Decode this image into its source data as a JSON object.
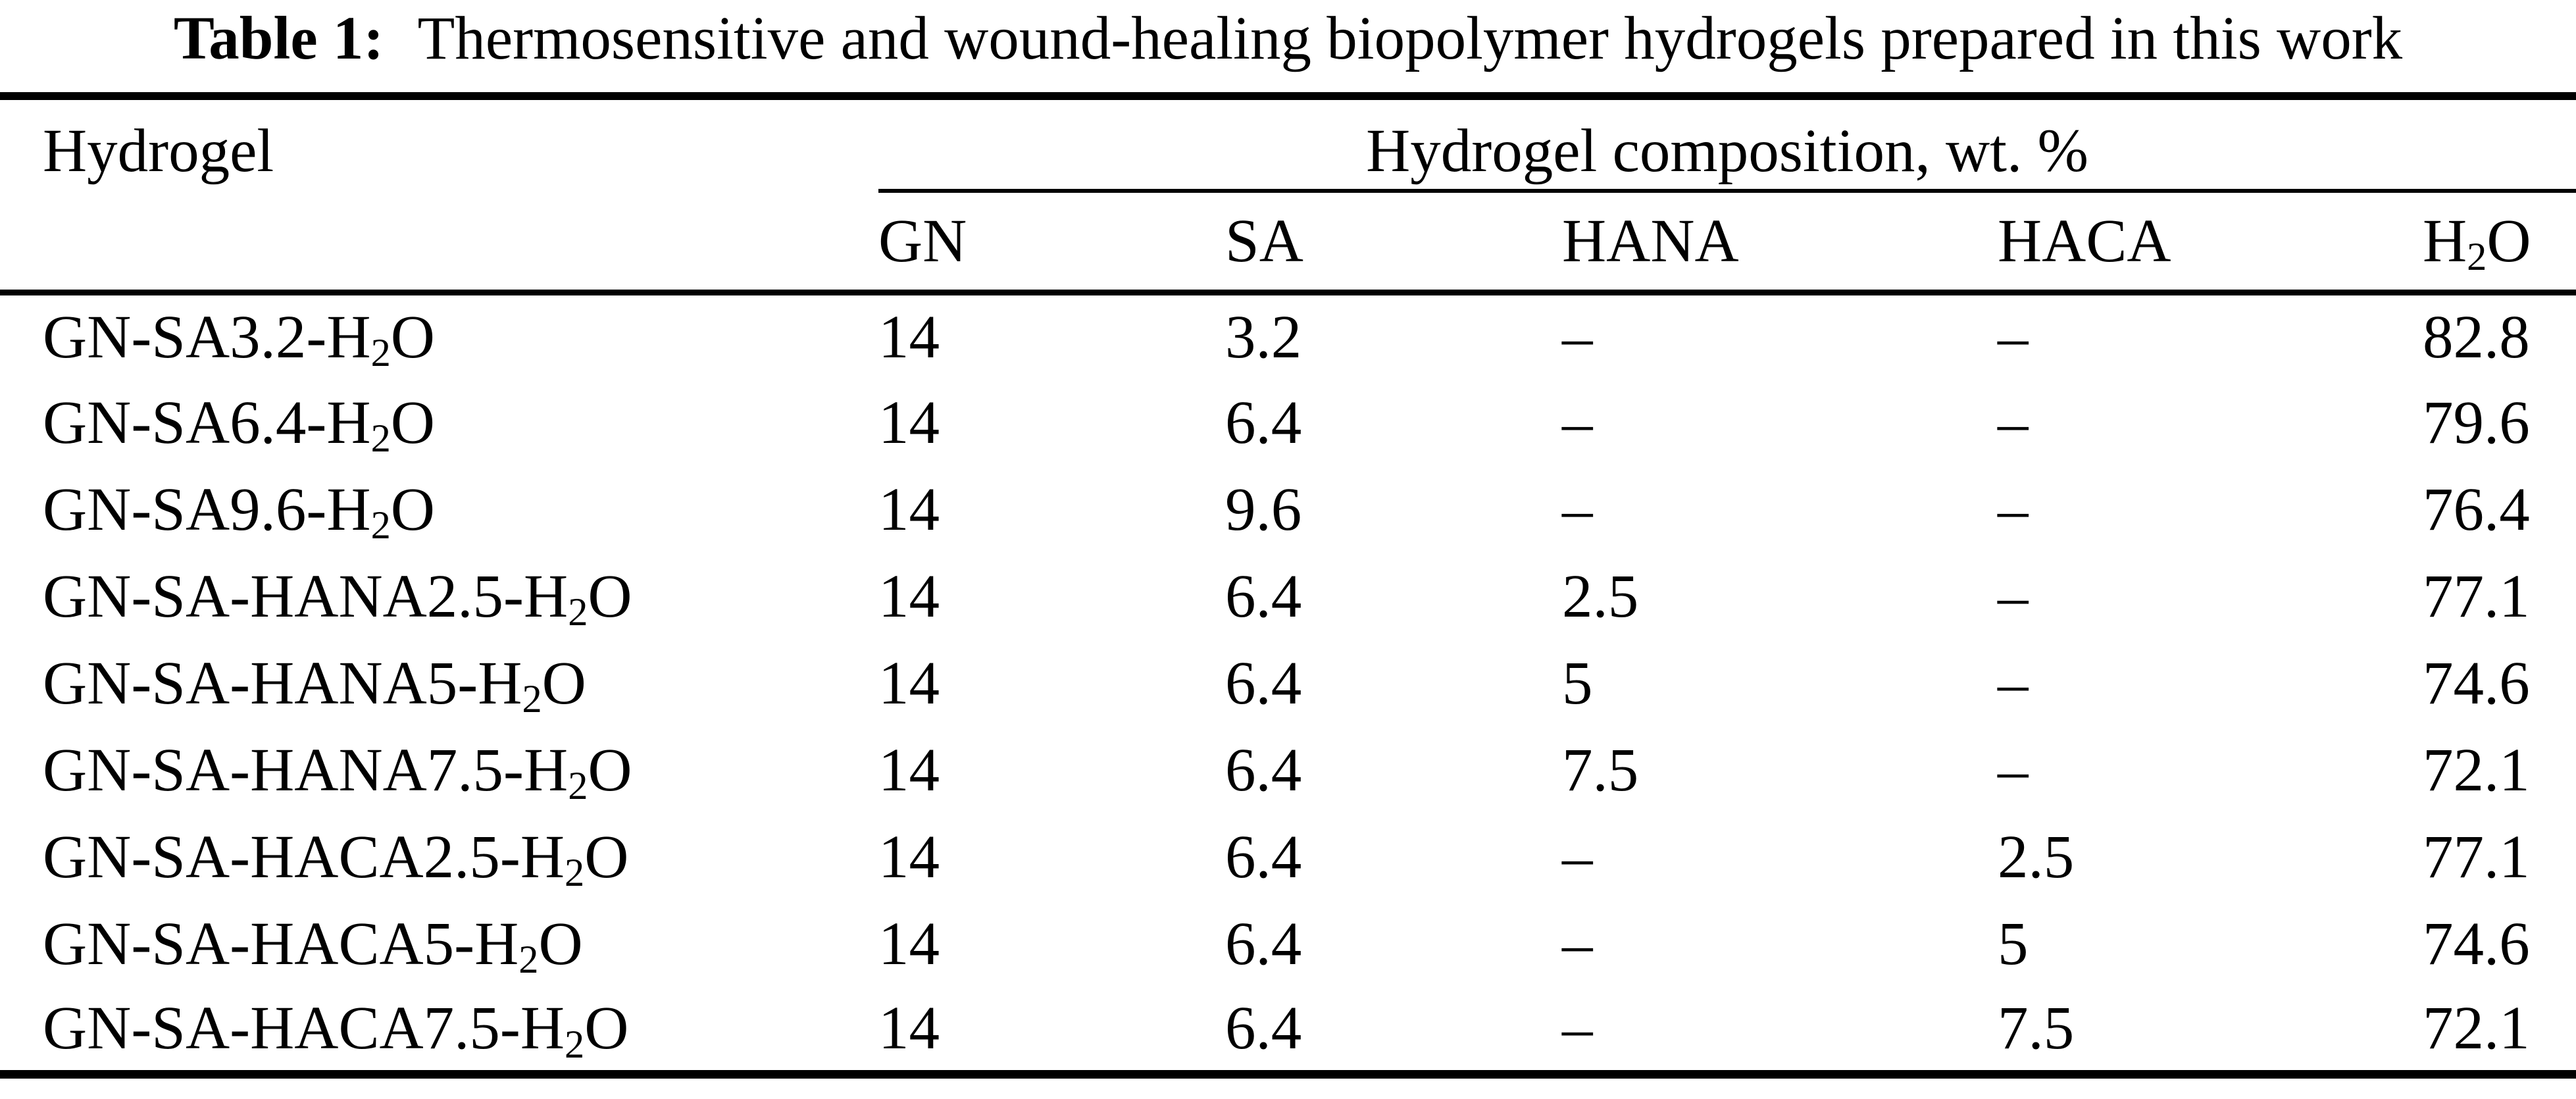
{
  "title": {
    "label": "Table 1:",
    "text": "Thermosensitive and wound-healing biopolymer hydrogels prepared in this work"
  },
  "colors": {
    "text": "#000000",
    "background": "#ffffff",
    "rules": "#000000"
  },
  "table": {
    "row_header": "Hydrogel",
    "group_header": "Hydrogel composition, wt. %",
    "columns": [
      "GN",
      "SA",
      "HANA",
      "HACA",
      "H~2~O"
    ],
    "rows": [
      {
        "name": "GN-SA3.2-H~2~O",
        "gn": "14",
        "sa": "3.2",
        "hana": "–",
        "haca": "–",
        "h2o": "82.8"
      },
      {
        "name": "GN-SA6.4-H~2~O",
        "gn": "14",
        "sa": "6.4",
        "hana": "–",
        "haca": "–",
        "h2o": "79.6"
      },
      {
        "name": "GN-SA9.6-H~2~O",
        "gn": "14",
        "sa": "9.6",
        "hana": "–",
        "haca": "–",
        "h2o": "76.4"
      },
      {
        "name": "GN-SA-HANA2.5-H~2~O",
        "gn": "14",
        "sa": "6.4",
        "hana": "2.5",
        "haca": "–",
        "h2o": "77.1"
      },
      {
        "name": "GN-SA-HANA5-H~2~O",
        "gn": "14",
        "sa": "6.4",
        "hana": "5",
        "haca": "–",
        "h2o": "74.6"
      },
      {
        "name": "GN-SA-HANA7.5-H~2~O",
        "gn": "14",
        "sa": "6.4",
        "hana": "7.5",
        "haca": "–",
        "h2o": "72.1"
      },
      {
        "name": "GN-SA-HACA2.5-H~2~O",
        "gn": "14",
        "sa": "6.4",
        "hana": "–",
        "haca": "2.5",
        "h2o": "77.1"
      },
      {
        "name": "GN-SA-HACA5-H~2~O",
        "gn": "14",
        "sa": "6.4",
        "hana": "–",
        "haca": "5",
        "h2o": "74.6"
      },
      {
        "name": "GN-SA-HACA7.5-H~2~O",
        "gn": "14",
        "sa": "6.4",
        "hana": "–",
        "haca": "7.5",
        "h2o": "72.1"
      }
    ]
  }
}
